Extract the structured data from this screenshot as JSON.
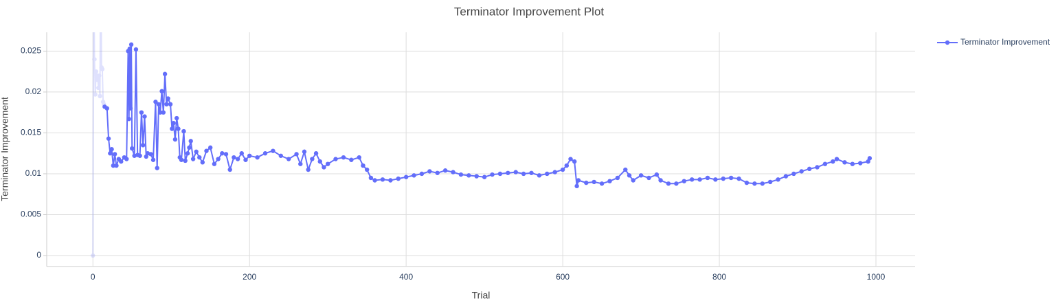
{
  "chart_data": {
    "type": "line",
    "title": "Terminator Improvement Plot",
    "x_label": "Trial",
    "y_label": "Terminator Improvement",
    "xlim": [
      -59,
      1050
    ],
    "ylim": [
      -0.00134,
      0.0273
    ],
    "xticks": [
      0,
      200,
      400,
      600,
      800,
      1000
    ],
    "yticks": [
      0,
      0.005,
      0.01,
      0.015,
      0.02,
      0.025
    ],
    "grid": true,
    "legend": "top-right",
    "series": [
      {
        "name": "Terminator Improvement",
        "color": "#636efa",
        "opacity": 0.2,
        "showlegend": false,
        "x": [
          0,
          1,
          2,
          3,
          4,
          5,
          6,
          7,
          8,
          9,
          10,
          11,
          12,
          13,
          14
        ],
        "values": [
          0,
          0.04,
          0.024,
          0.0197,
          0.0225,
          0.0215,
          0.022,
          0.0205,
          0.022,
          0.0195,
          0.04,
          0.023,
          0.0228,
          0.0188,
          0.0185
        ]
      },
      {
        "name": "Terminator Improvement",
        "color": "#636efa",
        "opacity": 1,
        "showlegend": true,
        "x": [
          15,
          18,
          20,
          22,
          24,
          26,
          28,
          30,
          33,
          36,
          40,
          43,
          45,
          46,
          47,
          48,
          49,
          50,
          53,
          55,
          57,
          60,
          62,
          64,
          66,
          68,
          70,
          74,
          77,
          80,
          82,
          84,
          86,
          88,
          90,
          92,
          94,
          96,
          99,
          101,
          103,
          105,
          107,
          109,
          111,
          113,
          116,
          118,
          121,
          123,
          125,
          128,
          132,
          136,
          140,
          145,
          150,
          155,
          160,
          165,
          170,
          175,
          180,
          185,
          190,
          195,
          200,
          210,
          220,
          230,
          240,
          250,
          260,
          265,
          270,
          275,
          280,
          285,
          290,
          295,
          300,
          310,
          320,
          330,
          340,
          345,
          350,
          355,
          360,
          370,
          380,
          390,
          400,
          410,
          420,
          430,
          440,
          450,
          460,
          470,
          480,
          490,
          500,
          510,
          520,
          530,
          540,
          550,
          560,
          570,
          580,
          590,
          600,
          605,
          610,
          615,
          618,
          620,
          630,
          640,
          650,
          660,
          670,
          680,
          685,
          690,
          700,
          710,
          720,
          725,
          735,
          745,
          755,
          765,
          775,
          785,
          795,
          805,
          815,
          825,
          835,
          845,
          855,
          865,
          875,
          885,
          895,
          905,
          915,
          925,
          935,
          945,
          950,
          960,
          970,
          980,
          990,
          992
        ],
        "values": [
          0.0182,
          0.018,
          0.0143,
          0.0125,
          0.013,
          0.011,
          0.0124,
          0.011,
          0.0118,
          0.0115,
          0.012,
          0.0118,
          0.025,
          0.0167,
          0.0253,
          0.018,
          0.0258,
          0.0131,
          0.0122,
          0.0252,
          0.0123,
          0.0122,
          0.0175,
          0.0135,
          0.017,
          0.0121,
          0.0125,
          0.0124,
          0.0117,
          0.0188,
          0.0107,
          0.0185,
          0.0175,
          0.0201,
          0.0175,
          0.0222,
          0.0185,
          0.0192,
          0.0185,
          0.0155,
          0.0162,
          0.0142,
          0.0168,
          0.0155,
          0.012,
          0.0117,
          0.0152,
          0.0116,
          0.0125,
          0.0132,
          0.014,
          0.0118,
          0.0127,
          0.012,
          0.0114,
          0.0128,
          0.0132,
          0.0112,
          0.0118,
          0.0125,
          0.0124,
          0.0105,
          0.012,
          0.0118,
          0.0125,
          0.0117,
          0.0122,
          0.012,
          0.0125,
          0.0128,
          0.0122,
          0.0118,
          0.0124,
          0.0112,
          0.0127,
          0.0105,
          0.0118,
          0.0125,
          0.0115,
          0.0108,
          0.0112,
          0.0118,
          0.012,
          0.0117,
          0.012,
          0.011,
          0.0105,
          0.0095,
          0.0092,
          0.0093,
          0.0092,
          0.0094,
          0.0096,
          0.0098,
          0.01,
          0.0103,
          0.0101,
          0.0104,
          0.0102,
          0.0099,
          0.0098,
          0.0097,
          0.0096,
          0.0099,
          0.01,
          0.0101,
          0.0102,
          0.01,
          0.0101,
          0.0098,
          0.01,
          0.0102,
          0.0105,
          0.011,
          0.0118,
          0.0115,
          0.0085,
          0.0092,
          0.0089,
          0.009,
          0.0088,
          0.0091,
          0.0095,
          0.0105,
          0.0098,
          0.0092,
          0.0098,
          0.0095,
          0.0099,
          0.0092,
          0.0088,
          0.0088,
          0.0091,
          0.0093,
          0.0093,
          0.0095,
          0.0093,
          0.0094,
          0.0095,
          0.0094,
          0.0089,
          0.0088,
          0.0088,
          0.009,
          0.0093,
          0.0097,
          0.01,
          0.0103,
          0.0106,
          0.0108,
          0.0112,
          0.0115,
          0.0118,
          0.0114,
          0.0112,
          0.0113,
          0.0115,
          0.0119
        ]
      }
    ]
  }
}
